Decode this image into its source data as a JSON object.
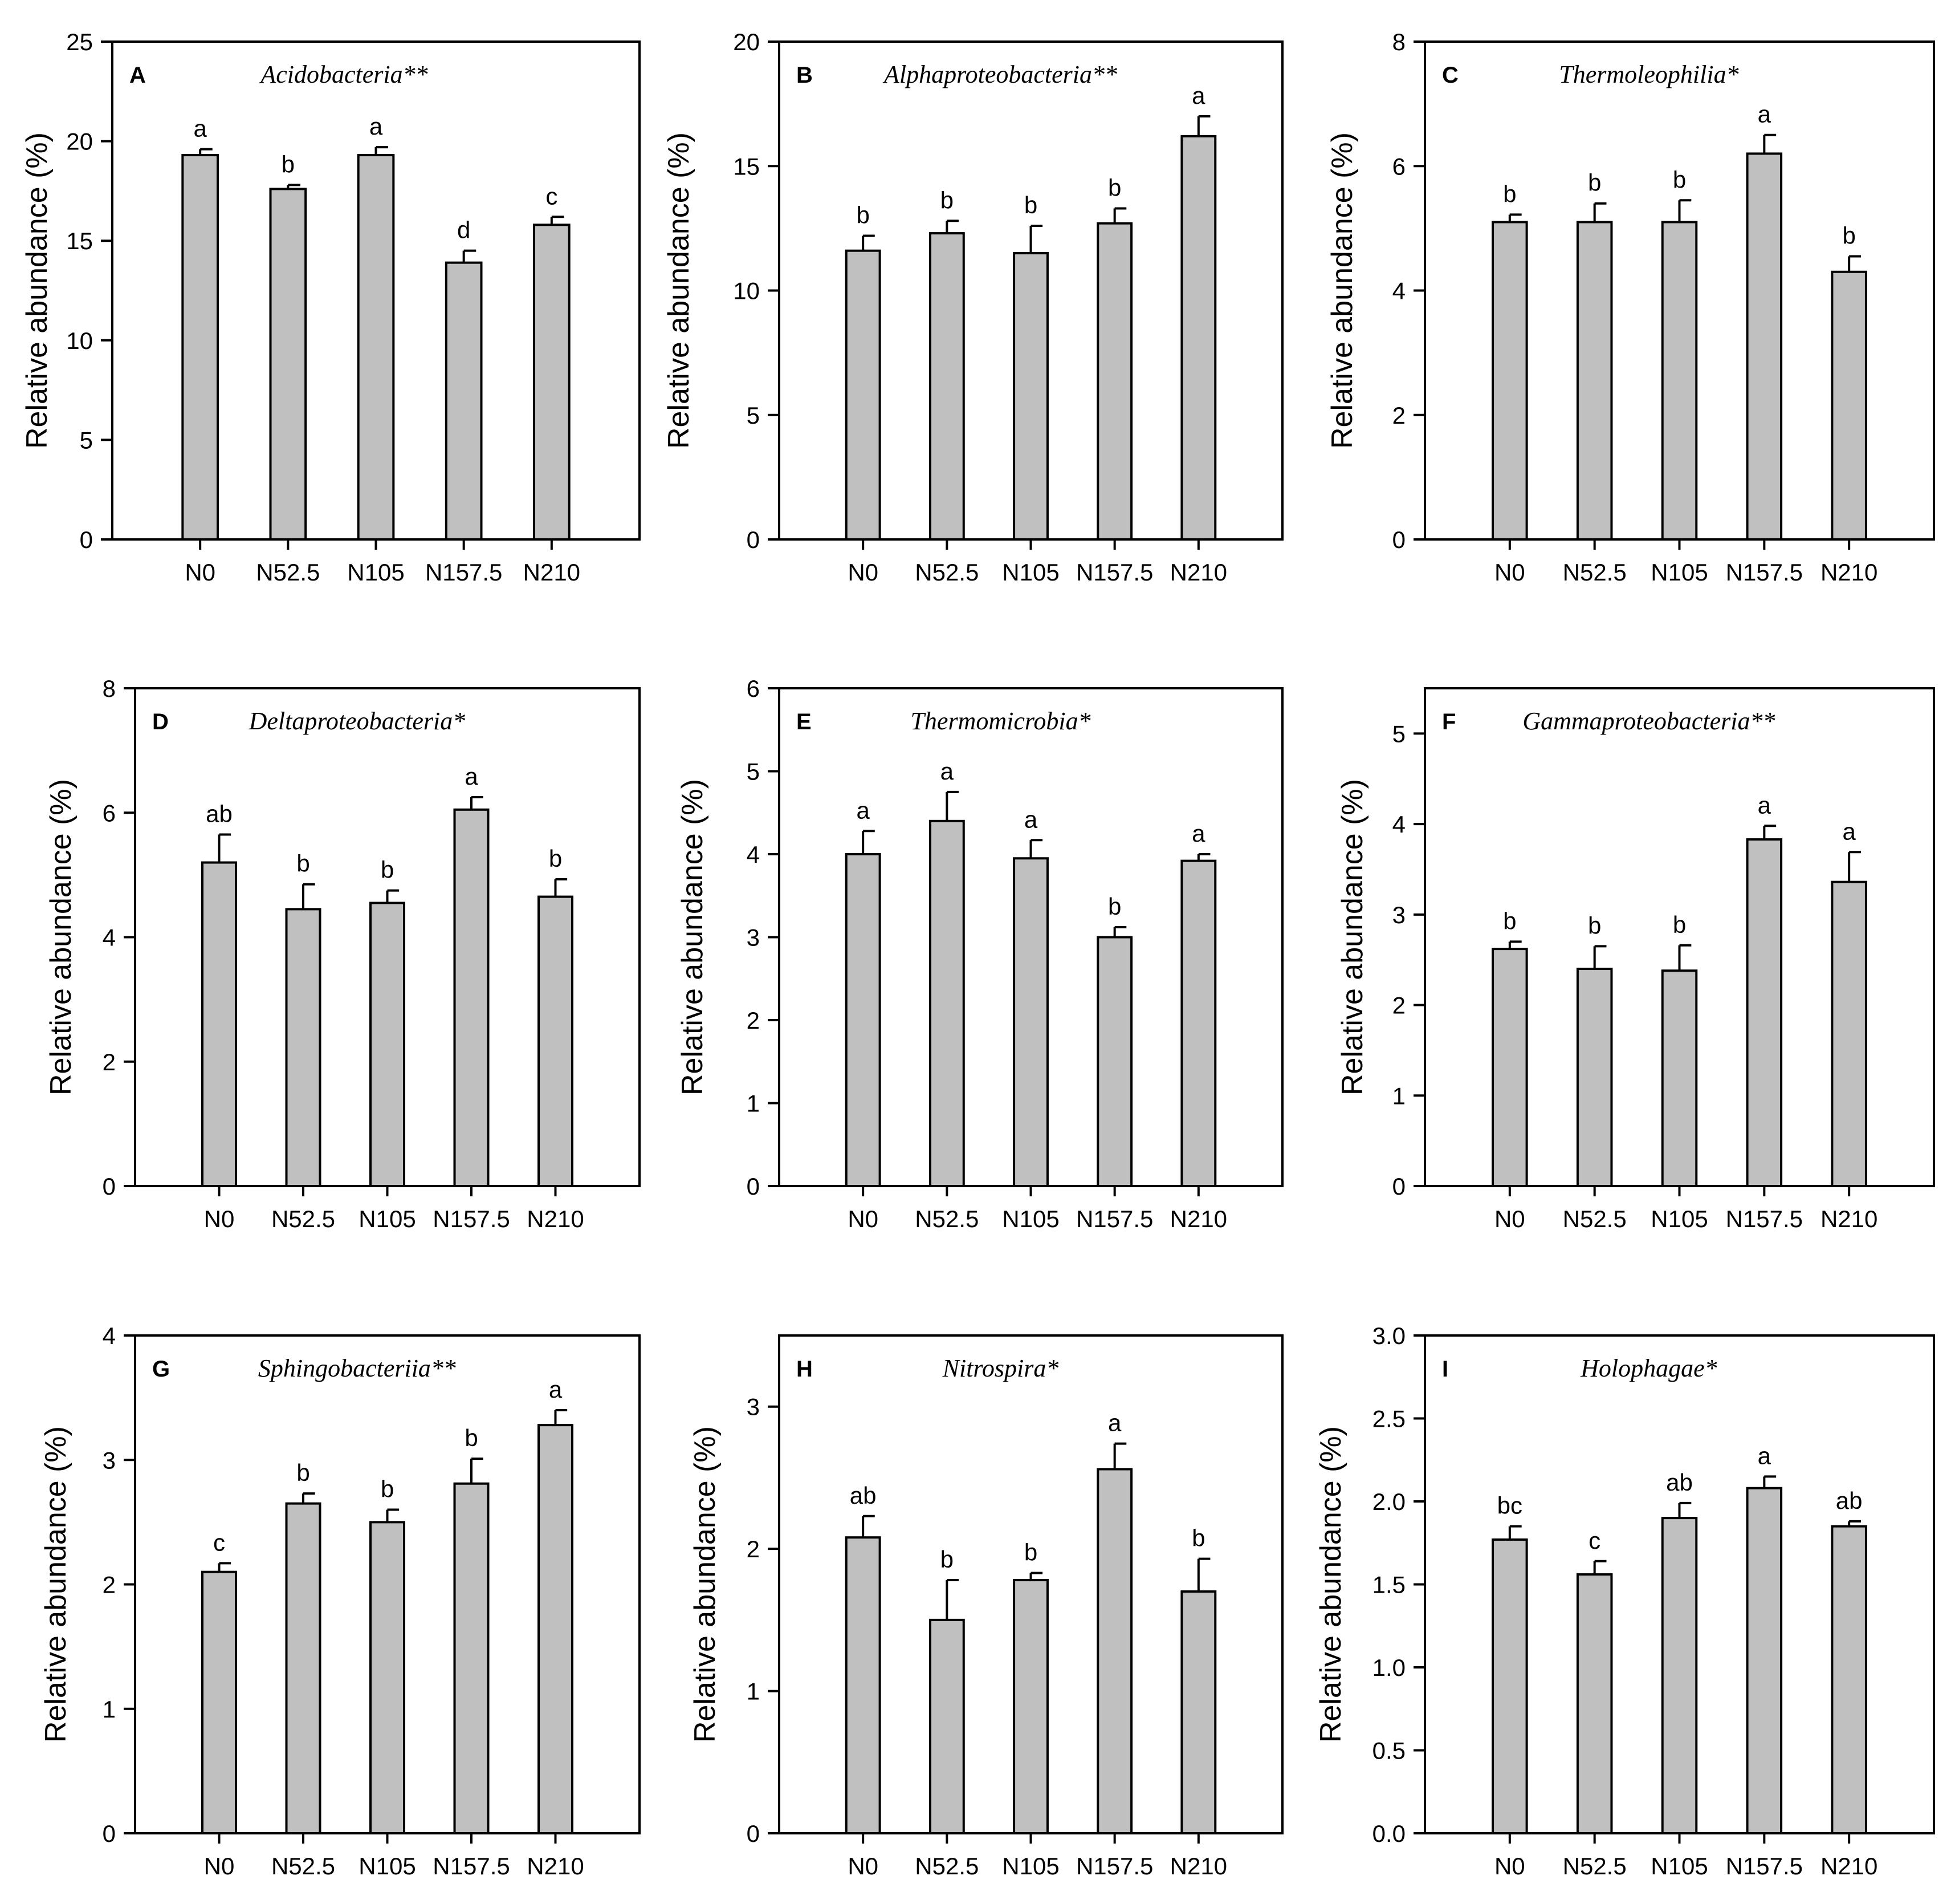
{
  "figure": {
    "bar_color": "#c0c0c0",
    "stroke_color": "#000000"
  },
  "chart_data": [
    {
      "panel": "A",
      "type": "bar",
      "title": "Acidobacteria**",
      "xlabel": "",
      "ylabel": "Relative abundance (%)",
      "ylim": [
        0,
        25
      ],
      "yticks": [
        0,
        5,
        10,
        15,
        20,
        25
      ],
      "categories": [
        "N0",
        "N52.5",
        "N105",
        "N157.5",
        "N210"
      ],
      "values": [
        19.3,
        17.6,
        19.3,
        13.9,
        15.8
      ],
      "errors": [
        0.3,
        0.2,
        0.4,
        0.6,
        0.4
      ],
      "letters": [
        "a",
        "b",
        "a",
        "d",
        "c"
      ]
    },
    {
      "panel": "B",
      "type": "bar",
      "title": "Alphaproteobacteria**",
      "xlabel": "",
      "ylabel": "Relative abundance (%)",
      "ylim": [
        0,
        20
      ],
      "yticks": [
        0,
        5,
        10,
        15,
        20
      ],
      "categories": [
        "N0",
        "N52.5",
        "N105",
        "N157.5",
        "N210"
      ],
      "values": [
        11.6,
        12.3,
        11.5,
        12.7,
        16.2
      ],
      "errors": [
        0.6,
        0.5,
        1.1,
        0.6,
        0.8
      ],
      "letters": [
        "b",
        "b",
        "b",
        "b",
        "a"
      ]
    },
    {
      "panel": "C",
      "type": "bar",
      "title": "Thermoleophilia*",
      "xlabel": "",
      "ylabel": "Relative abundance (%)",
      "ylim": [
        0,
        8
      ],
      "yticks": [
        0,
        2,
        4,
        6,
        8
      ],
      "categories": [
        "N0",
        "N52.5",
        "N105",
        "N157.5",
        "N210"
      ],
      "values": [
        5.1,
        5.1,
        5.1,
        6.2,
        4.3
      ],
      "errors": [
        0.12,
        0.3,
        0.35,
        0.3,
        0.25
      ],
      "letters": [
        "b",
        "b",
        "b",
        "a",
        "b"
      ]
    },
    {
      "panel": "D",
      "type": "bar",
      "title": "Deltaproteobacteria*",
      "xlabel": "",
      "ylabel": "Relative abundance (%)",
      "ylim": [
        0,
        8
      ],
      "yticks": [
        0,
        2,
        4,
        6,
        8
      ],
      "categories": [
        "N0",
        "N52.5",
        "N105",
        "N157.5",
        "N210"
      ],
      "values": [
        5.2,
        4.45,
        4.55,
        6.05,
        4.65
      ],
      "errors": [
        0.45,
        0.4,
        0.2,
        0.2,
        0.28
      ],
      "letters": [
        "ab",
        "b",
        "b",
        "a",
        "b"
      ]
    },
    {
      "panel": "E",
      "type": "bar",
      "title": "Thermomicrobia*",
      "xlabel": "",
      "ylabel": "Relative abundance (%)",
      "ylim": [
        0,
        6
      ],
      "yticks": [
        0,
        1,
        2,
        3,
        4,
        5,
        6
      ],
      "categories": [
        "N0",
        "N52.5",
        "N105",
        "N157.5",
        "N210"
      ],
      "values": [
        4.0,
        4.4,
        3.95,
        3.0,
        3.92
      ],
      "errors": [
        0.28,
        0.35,
        0.22,
        0.12,
        0.08
      ],
      "letters": [
        "a",
        "a",
        "a",
        "b",
        "a"
      ]
    },
    {
      "panel": "F",
      "type": "bar",
      "title": "Gammaproteobacteria**",
      "xlabel": "",
      "ylabel": "Relative abundance (%)",
      "ylim": [
        0,
        5.5
      ],
      "yticks": [
        0,
        1,
        2,
        3,
        4,
        5
      ],
      "categories": [
        "N0",
        "N52.5",
        "N105",
        "N157.5",
        "N210"
      ],
      "values": [
        2.62,
        2.4,
        2.38,
        3.83,
        3.36
      ],
      "errors": [
        0.08,
        0.25,
        0.28,
        0.15,
        0.33
      ],
      "letters": [
        "b",
        "b",
        "b",
        "a",
        "a"
      ]
    },
    {
      "panel": "G",
      "type": "bar",
      "title": "Sphingobacteriia**",
      "xlabel": "",
      "ylabel": "Relative abundance (%)",
      "ylim": [
        0,
        4
      ],
      "yticks": [
        0,
        1,
        2,
        3,
        4
      ],
      "categories": [
        "N0",
        "N52.5",
        "N105",
        "N157.5",
        "N210"
      ],
      "values": [
        2.1,
        2.65,
        2.5,
        2.81,
        3.28
      ],
      "errors": [
        0.07,
        0.08,
        0.1,
        0.2,
        0.12
      ],
      "letters": [
        "c",
        "b",
        "b",
        "b",
        "a"
      ]
    },
    {
      "panel": "H",
      "type": "bar",
      "title": "Nitrospira*",
      "xlabel": "",
      "ylabel": "Relative abundance (%)",
      "ylim": [
        0,
        3.5
      ],
      "yticks": [
        0,
        1,
        2,
        3
      ],
      "categories": [
        "N0",
        "N52.5",
        "N105",
        "N157.5",
        "N210"
      ],
      "values": [
        2.08,
        1.5,
        1.78,
        2.56,
        1.7
      ],
      "errors": [
        0.15,
        0.28,
        0.05,
        0.18,
        0.23
      ],
      "letters": [
        "ab",
        "b",
        "b",
        "a",
        "b"
      ]
    },
    {
      "panel": "I",
      "type": "bar",
      "title": "Holophagae*",
      "xlabel": "",
      "ylabel": "Relative abundance (%)",
      "ylim": [
        0,
        3.0
      ],
      "yticks": [
        0.0,
        0.5,
        1.0,
        1.5,
        2.0,
        2.5,
        3.0
      ],
      "ytick_decimals": 1,
      "categories": [
        "N0",
        "N52.5",
        "N105",
        "N157.5",
        "N210"
      ],
      "values": [
        1.77,
        1.56,
        1.9,
        2.08,
        1.85
      ],
      "errors": [
        0.08,
        0.08,
        0.09,
        0.07,
        0.03
      ],
      "letters": [
        "bc",
        "c",
        "ab",
        "a",
        "ab"
      ]
    }
  ]
}
